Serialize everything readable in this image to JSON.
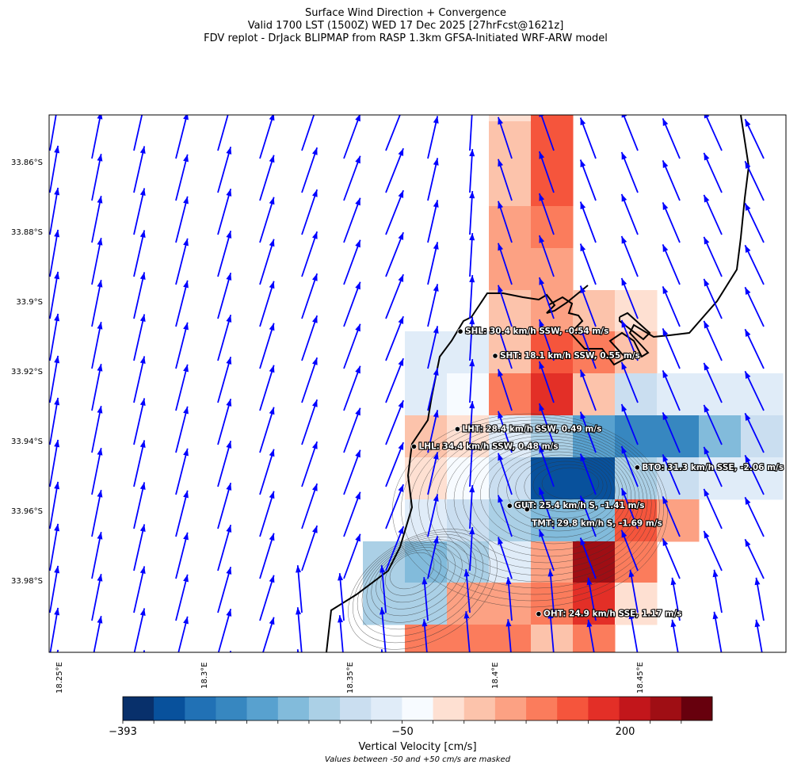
{
  "title": {
    "line1": "Surface Wind Direction + Convergence",
    "line2": "Valid 1700 LST (1500Z) WED 17 Dec 2025 [27hrFcst@1621z]",
    "line3": "FDV replot - DrJack BLIPMAP from RASP 1.3km GFSA-Initiated WRF-ARW model"
  },
  "chart_data": {
    "type": "heatmap",
    "lat_ticks": [
      "33.86°S",
      "33.88°S",
      "33.9°S",
      "33.92°S",
      "33.94°S",
      "33.96°S",
      "33.98°S"
    ],
    "lon_ticks": [
      "18.25°E",
      "18.3°E",
      "18.35°E",
      "18.4°E",
      "18.45°E"
    ],
    "colorbar": {
      "label": "Vertical Velocity [cm/s]",
      "note": "Values between -50 and +50 cm/s are masked",
      "tick_labels": [
        "−393",
        "−50",
        "200"
      ],
      "colors": [
        "#08306b",
        "#08519c",
        "#2171b5",
        "#3787c0",
        "#58a1cf",
        "#82bbdb",
        "#abd0e6",
        "#cadef0",
        "#e0ecf8",
        "#f7fbff",
        "#fee0d2",
        "#fcc3ab",
        "#fca183",
        "#fb7c5c",
        "#f5553c",
        "#e32f27",
        "#c2161b",
        "#9f0e14",
        "#67000d"
      ]
    },
    "cells_bin_grid": [
      [
        null,
        null,
        null,
        10,
        14,
        null,
        null,
        null,
        null,
        null
      ],
      [
        null,
        null,
        null,
        11,
        14,
        null,
        null,
        null,
        null,
        null
      ],
      [
        null,
        null,
        null,
        12,
        13,
        null,
        null,
        null,
        null,
        null
      ],
      [
        null,
        null,
        null,
        12,
        12,
        null,
        null,
        null,
        null,
        null
      ],
      [
        null,
        null,
        null,
        11,
        12,
        11,
        10,
        null,
        null,
        null
      ],
      [
        null,
        8,
        8,
        11,
        14,
        13,
        11,
        null,
        null,
        null
      ],
      [
        null,
        8,
        9,
        13,
        15,
        11,
        7,
        8,
        8,
        8
      ],
      [
        null,
        11,
        10,
        8,
        6,
        4,
        3,
        3,
        5,
        7
      ],
      [
        null,
        10,
        9,
        7,
        1,
        1,
        6,
        7,
        8,
        8
      ],
      [
        null,
        8,
        7,
        6,
        5,
        5,
        14,
        12,
        null,
        null
      ],
      [
        6,
        5,
        6,
        8,
        12,
        17,
        13,
        null,
        null,
        null
      ],
      [
        6,
        6,
        12,
        12,
        13,
        15,
        10,
        null,
        null,
        null
      ],
      [
        null,
        13,
        13,
        13,
        11,
        13,
        null,
        null,
        null,
        null
      ]
    ],
    "wind_arrow_color": "#0000ff",
    "stations": [
      {
        "label": "SHL: 30.4 km/h SSW, -0.54 m/s",
        "lon": 18.388,
        "lat": 33.908
      },
      {
        "label": "SHT: 18.1 km/h SSW, 0.55 m/s",
        "lon": 18.4,
        "lat": 33.915
      },
      {
        "label": "LHT: 28.4 km/h SSW, 0.49 m/s",
        "lon": 18.387,
        "lat": 33.936
      },
      {
        "label": "LHL: 34.4 km/h SSW, 0.48 m/s",
        "lon": 18.372,
        "lat": 33.941
      },
      {
        "label": "BTO: 31.3 km/h SSE, -2.06 m/s",
        "lon": 18.449,
        "lat": 33.947
      },
      {
        "label": "GUT: 25.4 km/h S, -1.41 m/s",
        "lon": 18.405,
        "lat": 33.958
      },
      {
        "label": "TMT: 29.8 km/h S, -1.69 m/s",
        "lon": 18.411,
        "lat": 33.959,
        "label_below": true
      },
      {
        "label": "OHT: 24.9 km/h SSE, 1.17 m/s",
        "lon": 18.415,
        "lat": 33.989
      }
    ]
  }
}
